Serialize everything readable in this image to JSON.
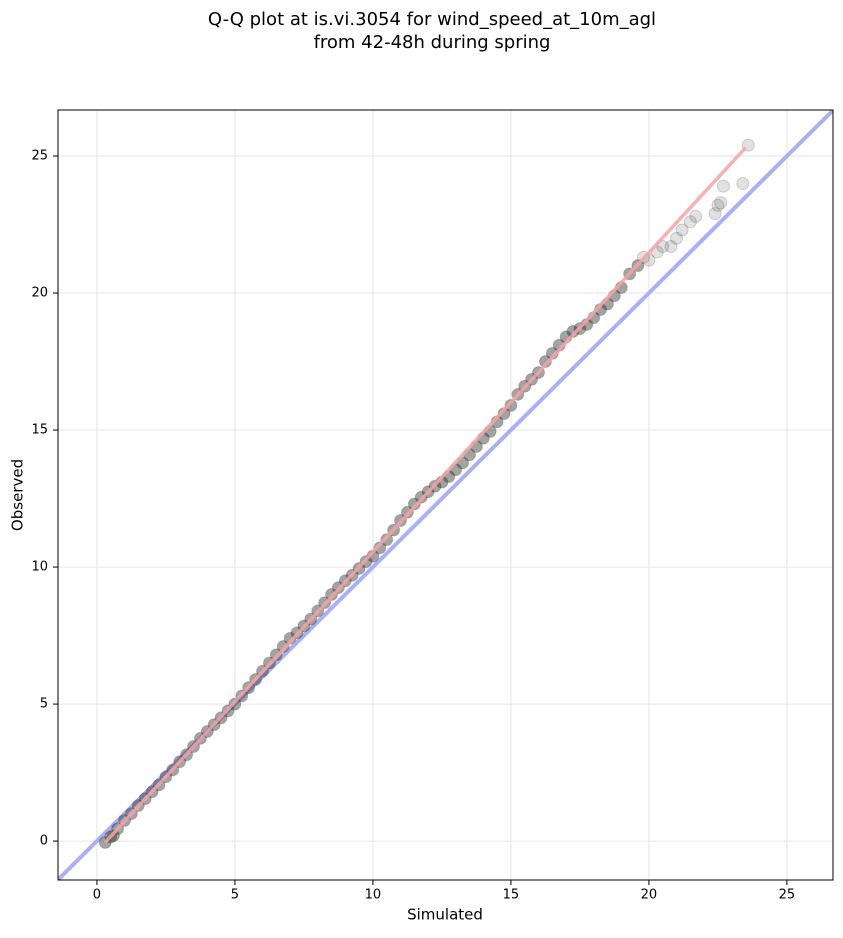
{
  "chart_data": {
    "type": "scatter",
    "title": [
      "Q-Q plot at is.vi.3054 for wind_speed_at_10m_agl",
      "from 42-48h during spring"
    ],
    "xlabel": "Simulated",
    "ylabel": "Observed",
    "xlim": [
      -1.41,
      26.67
    ],
    "ylim": [
      -1.42,
      26.68
    ],
    "xticks": [
      0,
      5,
      10,
      15,
      20,
      25
    ],
    "yticks": [
      0,
      5,
      10,
      15,
      20,
      25
    ],
    "grid": true,
    "color": "#333333",
    "x": [
      0.3,
      0.5,
      0.6,
      0.75,
      1.0,
      1.25,
      1.5,
      1.75,
      2.0,
      2.25,
      2.5,
      2.75,
      3.0,
      3.25,
      3.5,
      3.75,
      4.0,
      4.25,
      4.5,
      4.75,
      5.0,
      5.25,
      5.5,
      5.75,
      6.0,
      6.25,
      6.5,
      6.75,
      7.0,
      7.25,
      7.5,
      7.75,
      8.0,
      8.25,
      8.5,
      8.75,
      9.0,
      9.25,
      9.5,
      9.75,
      10.0,
      10.25,
      10.5,
      10.75,
      11.0,
      11.25,
      11.5,
      11.75,
      12.0,
      12.25,
      12.5,
      12.75,
      13.0,
      13.25,
      13.5,
      13.75,
      14.0,
      14.25,
      14.5,
      14.75,
      15.0,
      15.25,
      15.5,
      15.75,
      16.0,
      16.25,
      16.5,
      16.75,
      17.0,
      17.25,
      17.5,
      17.75,
      18.0,
      18.25,
      18.5,
      18.75,
      19.0,
      19.3,
      19.6,
      19.8,
      20.0,
      20.3,
      20.5,
      20.8,
      21.0,
      21.2,
      21.5,
      21.7,
      22.4,
      22.5,
      22.6,
      22.7,
      23.4,
      23.6
    ],
    "values": [
      -0.05,
      0.15,
      0.2,
      0.45,
      0.75,
      1.0,
      1.3,
      1.55,
      1.8,
      2.05,
      2.35,
      2.6,
      2.9,
      3.15,
      3.45,
      3.75,
      4.0,
      4.25,
      4.5,
      4.75,
      5.0,
      5.3,
      5.6,
      5.9,
      6.2,
      6.5,
      6.8,
      7.1,
      7.4,
      7.6,
      7.85,
      8.1,
      8.4,
      8.7,
      9.0,
      9.25,
      9.5,
      9.7,
      9.95,
      10.2,
      10.4,
      10.7,
      11.0,
      11.35,
      11.7,
      12.0,
      12.3,
      12.55,
      12.75,
      12.95,
      13.1,
      13.3,
      13.55,
      13.8,
      14.1,
      14.4,
      14.7,
      14.95,
      15.3,
      15.6,
      15.9,
      16.3,
      16.6,
      16.85,
      17.1,
      17.5,
      17.8,
      18.1,
      18.4,
      18.6,
      18.7,
      18.85,
      19.1,
      19.4,
      19.6,
      19.9,
      20.2,
      20.7,
      21.0,
      21.3,
      21.2,
      21.5,
      21.7,
      21.7,
      22.0,
      22.3,
      22.6,
      22.8,
      22.9,
      23.2,
      23.3,
      23.9,
      24.0,
      25.4
    ],
    "lines": [
      {
        "color": "#aab0f5",
        "x": [
          -1.41,
          26.67
        ],
        "values": [
          -1.41,
          26.67
        ]
      },
      {
        "color": "#f5a3a3",
        "x": [
          0.3,
          23.5
        ],
        "values": [
          -0.05,
          25.3
        ]
      }
    ]
  }
}
